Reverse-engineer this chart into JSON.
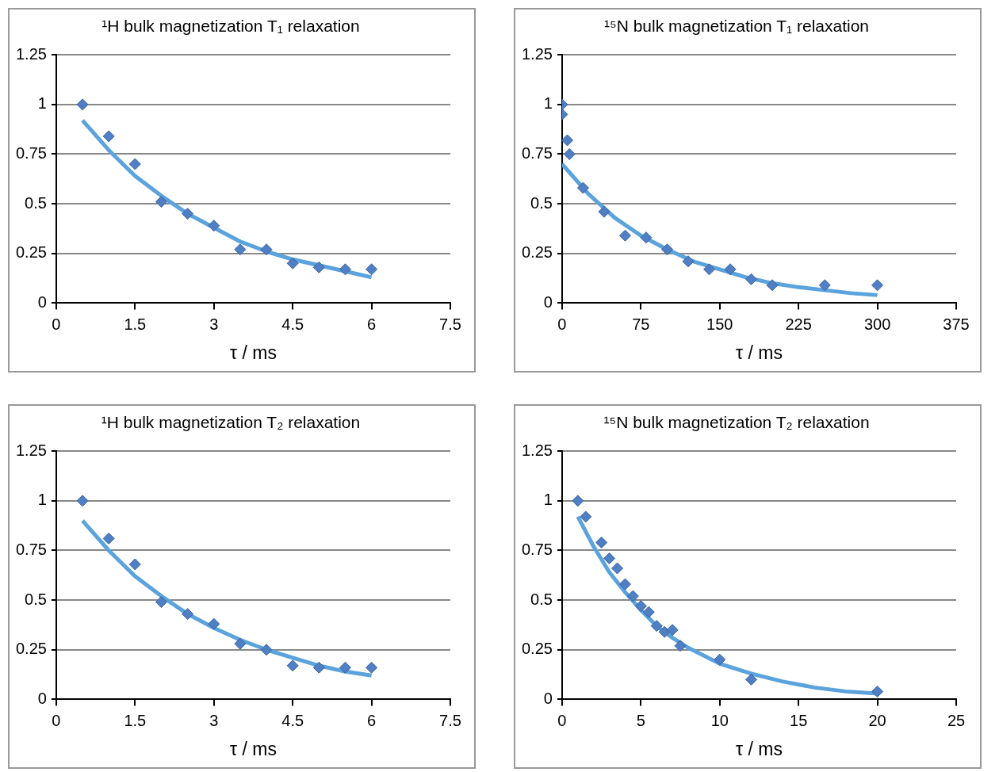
{
  "chart_data": [
    {
      "type": "scatter",
      "title": "¹H bulk magnetization T₁ relaxation",
      "xlabel": "τ / ms",
      "xlim": [
        0,
        7.5
      ],
      "xticks": [
        0,
        1.5,
        3,
        4.5,
        6,
        7.5
      ],
      "ylim": [
        0,
        1.25
      ],
      "yticks": [
        0,
        0.25,
        0.5,
        0.75,
        1,
        1.25
      ],
      "grid": "y",
      "legend": false,
      "series": [
        {
          "type": "line",
          "color": "#5ba3dc",
          "marker": "none",
          "x": [
            0.5,
            1,
            1.5,
            2,
            2.5,
            3,
            3.5,
            4,
            4.5,
            5,
            5.5,
            6
          ],
          "values": [
            0.92,
            0.77,
            0.64,
            0.54,
            0.45,
            0.38,
            0.31,
            0.26,
            0.22,
            0.19,
            0.16,
            0.13
          ]
        },
        {
          "type": "scatter",
          "color": "#4f7fc4",
          "marker": "diamond",
          "x": [
            0.5,
            1,
            1.5,
            2,
            2.5,
            3,
            3.5,
            4,
            4.5,
            5,
            5.5,
            6
          ],
          "values": [
            1.0,
            0.84,
            0.7,
            0.51,
            0.45,
            0.39,
            0.27,
            0.27,
            0.2,
            0.18,
            0.17,
            0.17
          ]
        }
      ]
    },
    {
      "type": "scatter",
      "title": "¹⁵N bulk magnetization T₁ relaxation",
      "xlabel": "τ / ms",
      "xlim": [
        0,
        375
      ],
      "xticks": [
        0,
        75,
        150,
        225,
        300,
        375
      ],
      "ylim": [
        0,
        1.25
      ],
      "yticks": [
        0,
        0.25,
        0.5,
        0.75,
        1,
        1.25
      ],
      "grid": "y",
      "legend": false,
      "series": [
        {
          "type": "line",
          "color": "#5ba3dc",
          "marker": "none",
          "x": [
            0,
            25,
            50,
            75,
            100,
            125,
            150,
            175,
            200,
            225,
            250,
            275,
            300
          ],
          "values": [
            0.7,
            0.55,
            0.43,
            0.34,
            0.27,
            0.21,
            0.17,
            0.13,
            0.1,
            0.08,
            0.065,
            0.05,
            0.04
          ]
        },
        {
          "type": "scatter",
          "color": "#4f7fc4",
          "marker": "diamond",
          "x": [
            0,
            0,
            5,
            7,
            20,
            40,
            60,
            80,
            100,
            120,
            140,
            160,
            180,
            200,
            250,
            300
          ],
          "values": [
            1.0,
            0.95,
            0.82,
            0.75,
            0.58,
            0.46,
            0.34,
            0.33,
            0.27,
            0.21,
            0.17,
            0.17,
            0.12,
            0.09,
            0.09,
            0.09
          ]
        }
      ]
    },
    {
      "type": "scatter",
      "title": "¹H bulk magnetization T₂ relaxation",
      "xlabel": "τ / ms",
      "xlim": [
        0,
        7.5
      ],
      "xticks": [
        0,
        1.5,
        3,
        4.5,
        6,
        7.5
      ],
      "ylim": [
        0,
        1.25
      ],
      "yticks": [
        0,
        0.25,
        0.5,
        0.75,
        1,
        1.25
      ],
      "grid": "y",
      "legend": false,
      "series": [
        {
          "type": "line",
          "color": "#5ba3dc",
          "marker": "none",
          "x": [
            0.5,
            1,
            1.5,
            2,
            2.5,
            3,
            3.5,
            4,
            4.5,
            5,
            5.5,
            6
          ],
          "values": [
            0.9,
            0.75,
            0.62,
            0.52,
            0.43,
            0.36,
            0.3,
            0.25,
            0.21,
            0.17,
            0.14,
            0.12
          ]
        },
        {
          "type": "scatter",
          "color": "#4f7fc4",
          "marker": "diamond",
          "x": [
            0.5,
            1,
            1.5,
            2,
            2.5,
            3,
            3.5,
            4,
            4.5,
            5,
            5.5,
            6
          ],
          "values": [
            1.0,
            0.81,
            0.68,
            0.49,
            0.43,
            0.38,
            0.28,
            0.25,
            0.17,
            0.16,
            0.16,
            0.16
          ]
        }
      ]
    },
    {
      "type": "scatter",
      "title": "¹⁵N bulk magnetization T₂ relaxation",
      "xlabel": "τ / ms",
      "xlim": [
        0,
        25
      ],
      "xticks": [
        0,
        5,
        10,
        15,
        20,
        25
      ],
      "ylim": [
        0,
        1.25
      ],
      "yticks": [
        0,
        0.25,
        0.5,
        0.75,
        1,
        1.25
      ],
      "grid": "y",
      "legend": false,
      "series": [
        {
          "type": "line",
          "color": "#5ba3dc",
          "marker": "none",
          "x": [
            1,
            2,
            3,
            4,
            5,
            6,
            7,
            8,
            10,
            12,
            14,
            16,
            18,
            20
          ],
          "values": [
            0.92,
            0.77,
            0.64,
            0.54,
            0.45,
            0.37,
            0.31,
            0.26,
            0.18,
            0.13,
            0.09,
            0.06,
            0.04,
            0.03
          ]
        },
        {
          "type": "scatter",
          "color": "#4f7fc4",
          "marker": "diamond",
          "x": [
            1,
            1.5,
            2.5,
            3,
            3.5,
            4,
            4.5,
            5,
            5.5,
            6,
            6.5,
            7,
            7.5,
            10,
            12,
            20
          ],
          "values": [
            1.0,
            0.92,
            0.79,
            0.71,
            0.66,
            0.58,
            0.52,
            0.47,
            0.44,
            0.37,
            0.34,
            0.35,
            0.27,
            0.2,
            0.1,
            0.04
          ]
        }
      ]
    }
  ]
}
